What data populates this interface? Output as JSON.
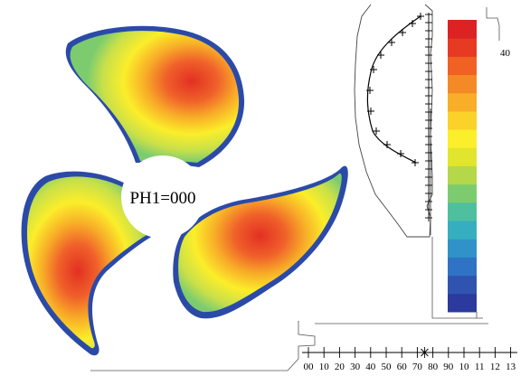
{
  "figure": {
    "hub_label": "PH1=000",
    "colorbar_label": "40",
    "colorbar_colors": [
      "#2b3a9c",
      "#2f54b0",
      "#2f73c4",
      "#2f93c8",
      "#35afbf",
      "#4ec09f",
      "#7ccc6f",
      "#b4d84a",
      "#e2e52e",
      "#fbee2a",
      "#fad22a",
      "#f8ae28",
      "#f48a26",
      "#ef6224",
      "#e63a22",
      "#dc2222"
    ],
    "axis_tick_labels": [
      "00",
      "10",
      "20",
      "30",
      "40",
      "50",
      "60",
      "70",
      "80",
      "90",
      "10",
      "11",
      "12",
      "13"
    ],
    "marker_tick_index": 7,
    "blade_colors": {
      "edge": "#2b4aa8",
      "outer": "#4ec09f",
      "light": "#c8e04a",
      "mid": "#fbee2a",
      "warm": "#f48a26",
      "core": "#e63a22"
    }
  }
}
